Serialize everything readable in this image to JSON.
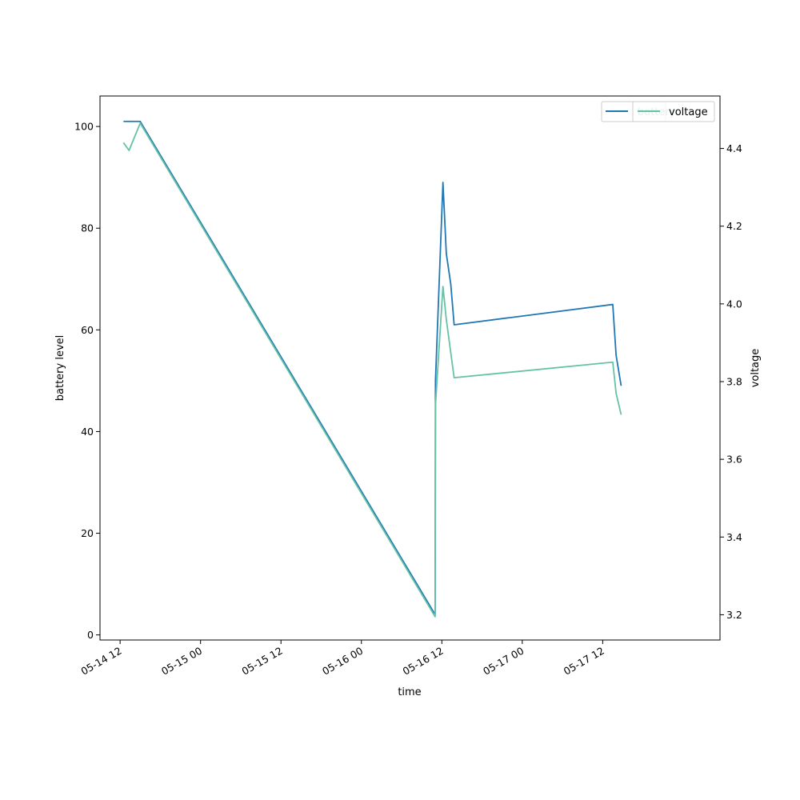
{
  "chart_data": {
    "type": "line",
    "xlabel": "time",
    "ylabel_left": "battery level",
    "ylabel_right": "voltage",
    "xlim": [
      "2024-05-14 09:00",
      "2024-05-18 05:30"
    ],
    "ylim_left": [
      -1,
      106
    ],
    "ylim_right": [
      3.135,
      4.535
    ],
    "x_ticks": [
      {
        "t": "2024-05-14 12:00",
        "label": "05-14 12"
      },
      {
        "t": "2024-05-15 00:00",
        "label": "05-15 00"
      },
      {
        "t": "2024-05-15 12:00",
        "label": "05-15 12"
      },
      {
        "t": "2024-05-16 00:00",
        "label": "05-16 00"
      },
      {
        "t": "2024-05-16 12:00",
        "label": "05-16 12"
      },
      {
        "t": "2024-05-17 00:00",
        "label": "05-17 00"
      },
      {
        "t": "2024-05-17 12:00",
        "label": "05-17 12"
      }
    ],
    "y_ticks_left": [
      0,
      20,
      40,
      60,
      80,
      100
    ],
    "y_ticks_right": [
      3.2,
      3.4,
      3.6,
      3.8,
      4.0,
      4.2,
      4.4
    ],
    "grid": false,
    "legend_placement": "top-right",
    "series": [
      {
        "name": "battery",
        "axis": "left",
        "color": "#1f77b4",
        "points": [
          [
            "2024-05-14 12:30",
            101
          ],
          [
            "2024-05-14 15:00",
            101
          ],
          [
            "2024-05-16 11:00",
            4
          ],
          [
            "2024-05-16 11:03",
            50
          ],
          [
            "2024-05-16 12:10",
            89
          ],
          [
            "2024-05-16 12:40",
            75
          ],
          [
            "2024-05-16 13:20",
            69
          ],
          [
            "2024-05-16 13:50",
            61
          ],
          [
            "2024-05-17 13:30",
            65
          ],
          [
            "2024-05-17 14:00",
            55
          ],
          [
            "2024-05-17 14:45",
            49
          ]
        ]
      },
      {
        "name": "voltage",
        "axis": "right",
        "color": "#66c2a5",
        "points": [
          [
            "2024-05-14 12:30",
            4.415
          ],
          [
            "2024-05-14 13:20",
            4.395
          ],
          [
            "2024-05-14 15:00",
            4.465
          ],
          [
            "2024-05-16 11:00",
            3.195
          ],
          [
            "2024-05-16 11:03",
            3.74
          ],
          [
            "2024-05-16 12:10",
            4.045
          ],
          [
            "2024-05-16 12:40",
            3.96
          ],
          [
            "2024-05-16 13:50",
            3.81
          ],
          [
            "2024-05-17 13:30",
            3.85
          ],
          [
            "2024-05-17 14:00",
            3.77
          ],
          [
            "2024-05-17 14:45",
            3.715
          ]
        ]
      }
    ]
  }
}
